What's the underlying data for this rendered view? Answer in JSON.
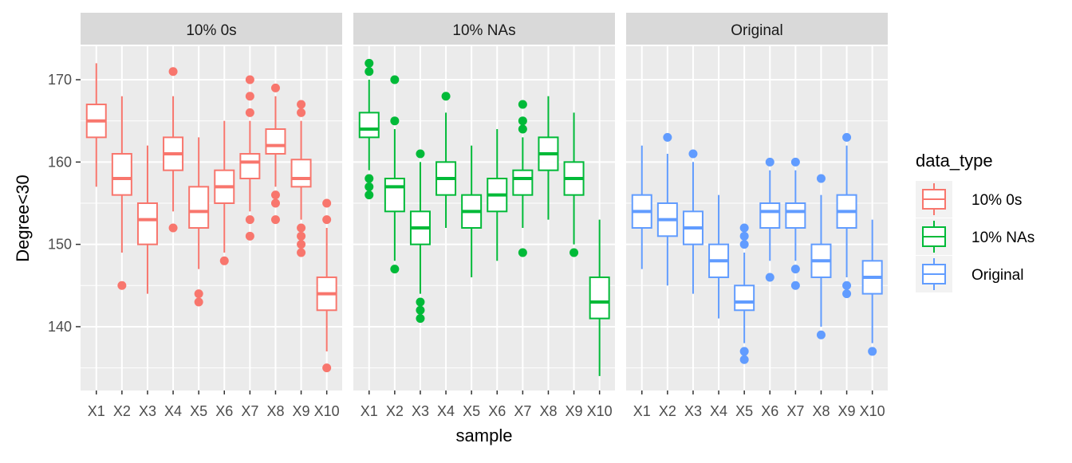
{
  "chart_data": {
    "type": "boxplot",
    "xlabel": "sample",
    "ylabel": "Degree<30",
    "ylim": [
      132.25,
      174.07
    ],
    "yticks": [
      140,
      150,
      160,
      170
    ],
    "grid": true,
    "legend": {
      "title": "data_type",
      "position": "right",
      "entries": [
        "10% 0s",
        "10% NAs",
        "Original"
      ]
    },
    "colors": {
      "10% 0s": "#F8766D",
      "10% NAs": "#00BA38",
      "Original": "#619CFF"
    },
    "categories": [
      "X1",
      "X2",
      "X3",
      "X4",
      "X5",
      "X6",
      "X7",
      "X8",
      "X9",
      "X10"
    ],
    "facets": [
      {
        "label": "10% 0s",
        "color": "#F8766D",
        "boxes": [
          {
            "low": 157,
            "q1": 163,
            "median": 165,
            "q3": 167,
            "high": 172,
            "outliers": []
          },
          {
            "low": 149,
            "q1": 156,
            "median": 158,
            "q3": 161,
            "high": 168,
            "outliers": [
              145
            ]
          },
          {
            "low": 144,
            "q1": 150,
            "median": 153,
            "q3": 155,
            "high": 162,
            "outliers": []
          },
          {
            "low": 154,
            "q1": 159,
            "median": 161,
            "q3": 163,
            "high": 168,
            "outliers": [
              171,
              152
            ]
          },
          {
            "low": 147,
            "q1": 152,
            "median": 154,
            "q3": 157,
            "high": 163,
            "outliers": [
              144,
              143
            ]
          },
          {
            "low": 149,
            "q1": 155,
            "median": 157,
            "q3": 159,
            "high": 165,
            "outliers": [
              148
            ]
          },
          {
            "low": 154,
            "q1": 158,
            "median": 160,
            "q3": 161,
            "high": 165,
            "outliers": [
              170,
              168,
              166,
              153,
              151
            ]
          },
          {
            "low": 157,
            "q1": 161,
            "median": 162,
            "q3": 164,
            "high": 168,
            "outliers": [
              169,
              156,
              155,
              153
            ]
          },
          {
            "low": 153,
            "q1": 157,
            "median": 158,
            "q3": 160.3,
            "high": 165,
            "outliers": [
              167,
              166,
              152,
              151,
              150,
              149
            ]
          },
          {
            "low": 137,
            "q1": 142,
            "median": 144,
            "q3": 146,
            "high": 152,
            "outliers": [
              155,
              153,
              135
            ]
          }
        ]
      },
      {
        "label": "10% NAs",
        "color": "#00BA38",
        "boxes": [
          {
            "low": 159,
            "q1": 163,
            "median": 164,
            "q3": 166,
            "high": 170,
            "outliers": [
              172,
              171,
              158,
              157,
              156
            ]
          },
          {
            "low": 148,
            "q1": 154,
            "median": 157,
            "q3": 158,
            "high": 164,
            "outliers": [
              170,
              165,
              147
            ]
          },
          {
            "low": 144,
            "q1": 150,
            "median": 152,
            "q3": 154,
            "high": 160,
            "outliers": [
              161,
              143,
              142,
              141
            ]
          },
          {
            "low": 152,
            "q1": 156,
            "median": 158,
            "q3": 160,
            "high": 166,
            "outliers": [
              168
            ]
          },
          {
            "low": 146,
            "q1": 152,
            "median": 154,
            "q3": 156,
            "high": 162,
            "outliers": []
          },
          {
            "low": 148,
            "q1": 154,
            "median": 156,
            "q3": 158,
            "high": 164,
            "outliers": []
          },
          {
            "low": 152,
            "q1": 156,
            "median": 158,
            "q3": 159,
            "high": 163,
            "outliers": [
              167,
              165,
              164,
              149
            ]
          },
          {
            "low": 153,
            "q1": 159,
            "median": 161,
            "q3": 163,
            "high": 168,
            "outliers": []
          },
          {
            "low": 150,
            "q1": 156,
            "median": 158,
            "q3": 160,
            "high": 166,
            "outliers": [
              149
            ]
          },
          {
            "low": 134,
            "q1": 141,
            "median": 143,
            "q3": 146,
            "high": 153,
            "outliers": []
          }
        ]
      },
      {
        "label": "Original",
        "color": "#619CFF",
        "boxes": [
          {
            "low": 147,
            "q1": 152,
            "median": 154,
            "q3": 156,
            "high": 162,
            "outliers": []
          },
          {
            "low": 145,
            "q1": 151,
            "median": 153,
            "q3": 155,
            "high": 161,
            "outliers": [
              163
            ]
          },
          {
            "low": 144,
            "q1": 150,
            "median": 152,
            "q3": 154,
            "high": 160,
            "outliers": [
              161
            ]
          },
          {
            "low": 141,
            "q1": 146,
            "median": 148,
            "q3": 150,
            "high": 156,
            "outliers": []
          },
          {
            "low": 138,
            "q1": 142,
            "median": 143,
            "q3": 145,
            "high": 149,
            "outliers": [
              152,
              151,
              150,
              137,
              136
            ]
          },
          {
            "low": 148,
            "q1": 152,
            "median": 154,
            "q3": 155,
            "high": 159,
            "outliers": [
              160,
              146
            ]
          },
          {
            "low": 148,
            "q1": 152,
            "median": 154,
            "q3": 155,
            "high": 159,
            "outliers": [
              160,
              147,
              145
            ]
          },
          {
            "low": 140,
            "q1": 146,
            "median": 148,
            "q3": 150,
            "high": 156,
            "outliers": [
              158,
              139
            ]
          },
          {
            "low": 146,
            "q1": 152,
            "median": 154,
            "q3": 156,
            "high": 162,
            "outliers": [
              163,
              145,
              144
            ]
          },
          {
            "low": 138,
            "q1": 144,
            "median": 146,
            "q3": 148,
            "high": 153,
            "outliers": [
              137
            ]
          }
        ]
      }
    ]
  }
}
